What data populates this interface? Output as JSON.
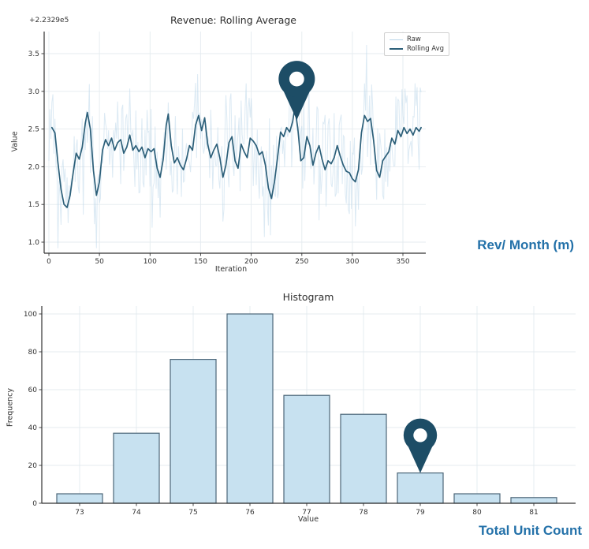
{
  "ui": {
    "annotations": [
      {
        "text": "Rev/ Month (m)",
        "color": "#2371a9"
      },
      {
        "text": "Total Unit Count",
        "color": "#2371a9"
      }
    ]
  },
  "chart_data": [
    {
      "type": "line",
      "title": "Revenue: Rolling Average",
      "xlabel": "Iteration",
      "ylabel": "Value",
      "y_offset_label": "+2.2329e5",
      "xticks": [
        0,
        50,
        100,
        150,
        200,
        250,
        300,
        350
      ],
      "yticks": [
        "1.0",
        "1.5",
        "2.0",
        "2.5",
        "3.0",
        "3.5"
      ],
      "ylim": [
        0.85,
        3.79
      ],
      "xlim": [
        -5,
        372
      ],
      "grid": true,
      "legend": {
        "position": "upper right",
        "entries": [
          {
            "label": "Raw",
            "color": "#b9d5e9"
          },
          {
            "label": "Rolling Avg",
            "color": "#2c5f79"
          }
        ]
      },
      "series": [
        {
          "name": "Raw",
          "color": "#b9d5e9",
          "opacity": 0.5,
          "derived": "rolling_plus_noise",
          "noise_amplitude": 0.62,
          "spike_prob": 0.1,
          "spike_mult": 1.9,
          "noise_seed": 91,
          "n_points": 368
        },
        {
          "name": "Rolling Avg",
          "color": "#2c5f79",
          "width": 1.7,
          "points": [
            [
              3,
              2.52
            ],
            [
              6,
              2.45
            ],
            [
              9,
              2.05
            ],
            [
              12,
              1.7
            ],
            [
              15,
              1.5
            ],
            [
              18,
              1.46
            ],
            [
              21,
              1.62
            ],
            [
              24,
              1.92
            ],
            [
              27,
              2.18
            ],
            [
              30,
              2.1
            ],
            [
              33,
              2.26
            ],
            [
              36,
              2.58
            ],
            [
              38,
              2.72
            ],
            [
              41,
              2.5
            ],
            [
              44,
              1.95
            ],
            [
              47,
              1.62
            ],
            [
              50,
              1.8
            ],
            [
              53,
              2.22
            ],
            [
              56,
              2.36
            ],
            [
              59,
              2.28
            ],
            [
              62,
              2.38
            ],
            [
              65,
              2.22
            ],
            [
              68,
              2.32
            ],
            [
              71,
              2.36
            ],
            [
              74,
              2.18
            ],
            [
              77,
              2.26
            ],
            [
              80,
              2.42
            ],
            [
              83,
              2.22
            ],
            [
              86,
              2.28
            ],
            [
              89,
              2.2
            ],
            [
              92,
              2.26
            ],
            [
              95,
              2.12
            ],
            [
              98,
              2.24
            ],
            [
              101,
              2.2
            ],
            [
              104,
              2.24
            ],
            [
              107,
              1.98
            ],
            [
              110,
              1.86
            ],
            [
              113,
              2.1
            ],
            [
              116,
              2.55
            ],
            [
              118,
              2.7
            ],
            [
              121,
              2.28
            ],
            [
              124,
              2.05
            ],
            [
              127,
              2.12
            ],
            [
              130,
              2.02
            ],
            [
              133,
              1.96
            ],
            [
              136,
              2.1
            ],
            [
              139,
              2.28
            ],
            [
              142,
              2.22
            ],
            [
              145,
              2.55
            ],
            [
              148,
              2.68
            ],
            [
              151,
              2.48
            ],
            [
              154,
              2.65
            ],
            [
              157,
              2.3
            ],
            [
              160,
              2.12
            ],
            [
              163,
              2.22
            ],
            [
              166,
              2.3
            ],
            [
              169,
              2.12
            ],
            [
              172,
              1.86
            ],
            [
              175,
              2.02
            ],
            [
              178,
              2.32
            ],
            [
              181,
              2.4
            ],
            [
              184,
              2.08
            ],
            [
              187,
              1.98
            ],
            [
              190,
              2.3
            ],
            [
              193,
              2.2
            ],
            [
              196,
              2.12
            ],
            [
              199,
              2.38
            ],
            [
              202,
              2.34
            ],
            [
              205,
              2.28
            ],
            [
              208,
              2.16
            ],
            [
              211,
              2.2
            ],
            [
              214,
              2.02
            ],
            [
              217,
              1.72
            ],
            [
              220,
              1.58
            ],
            [
              223,
              1.8
            ],
            [
              226,
              2.12
            ],
            [
              229,
              2.46
            ],
            [
              232,
              2.4
            ],
            [
              235,
              2.52
            ],
            [
              238,
              2.46
            ],
            [
              241,
              2.6
            ],
            [
              243,
              2.78
            ],
            [
              246,
              2.52
            ],
            [
              249,
              2.08
            ],
            [
              252,
              2.12
            ],
            [
              255,
              2.4
            ],
            [
              258,
              2.28
            ],
            [
              261,
              2.02
            ],
            [
              264,
              2.18
            ],
            [
              267,
              2.28
            ],
            [
              270,
              2.1
            ],
            [
              273,
              1.96
            ],
            [
              276,
              2.08
            ],
            [
              279,
              2.04
            ],
            [
              282,
              2.12
            ],
            [
              285,
              2.28
            ],
            [
              288,
              2.14
            ],
            [
              291,
              2.02
            ],
            [
              294,
              1.94
            ],
            [
              297,
              1.92
            ],
            [
              300,
              1.84
            ],
            [
              303,
              1.8
            ],
            [
              306,
              1.96
            ],
            [
              309,
              2.45
            ],
            [
              312,
              2.68
            ],
            [
              315,
              2.6
            ],
            [
              318,
              2.64
            ],
            [
              321,
              2.35
            ],
            [
              324,
              1.95
            ],
            [
              327,
              1.86
            ],
            [
              330,
              2.08
            ],
            [
              333,
              2.14
            ],
            [
              336,
              2.2
            ],
            [
              339,
              2.38
            ],
            [
              342,
              2.3
            ],
            [
              345,
              2.48
            ],
            [
              348,
              2.4
            ],
            [
              351,
              2.52
            ],
            [
              354,
              2.44
            ],
            [
              357,
              2.5
            ],
            [
              360,
              2.42
            ],
            [
              363,
              2.52
            ],
            [
              366,
              2.47
            ],
            [
              368,
              2.52
            ]
          ]
        }
      ],
      "marker": {
        "type": "map-pin",
        "x": 245,
        "y": 2.62,
        "color": "#1d4d66"
      }
    },
    {
      "type": "bar",
      "title": "Histogram",
      "xlabel": "Value",
      "ylabel": "Frequency",
      "categories": [
        73,
        74,
        75,
        76,
        77,
        78,
        79,
        80,
        81
      ],
      "values": [
        5,
        37,
        76,
        100,
        57,
        47,
        16,
        5,
        3
      ],
      "yticks": [
        0,
        20,
        40,
        60,
        80,
        100
      ],
      "ylim": [
        0,
        104
      ],
      "grid": true,
      "bar_fill": "#c7e1f0",
      "bar_edge": "#4c6678",
      "marker": {
        "type": "map-pin",
        "x": 79,
        "tip_y": 16,
        "color": "#1d4d66"
      }
    }
  ]
}
